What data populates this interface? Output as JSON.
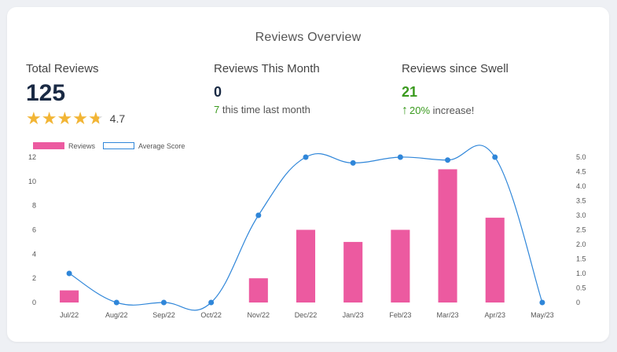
{
  "card": {
    "title": "Reviews Overview"
  },
  "stats": {
    "total": {
      "label": "Total Reviews",
      "value": "125",
      "rating": "4.7",
      "stars": 4.7
    },
    "month": {
      "label": "Reviews This Month",
      "value": "0",
      "sub_num": "7",
      "sub_text": " this time last month"
    },
    "swell": {
      "label": "Reviews since Swell",
      "value": "21",
      "sub_num": "20%",
      "sub_text": " increase!"
    }
  },
  "colors": {
    "bar": "#ec5aa0",
    "line": "#2f86d9",
    "green": "#3a9a1e",
    "star": "#f2b535"
  },
  "icons": {
    "star": "star-icon",
    "arrow": "arrow-up-icon"
  },
  "chart_data": {
    "type": "bar",
    "categories": [
      "Jul/22",
      "Aug/22",
      "Sep/22",
      "Oct/22",
      "Nov/22",
      "Dec/22",
      "Jan/23",
      "Feb/23",
      "Mar/23",
      "Apr/23",
      "May/23"
    ],
    "series": [
      {
        "name": "Reviews",
        "type": "bar",
        "axis": "left",
        "values": [
          1,
          0,
          0,
          0,
          2,
          6,
          5,
          6,
          11,
          7,
          0
        ]
      },
      {
        "name": "Average Score",
        "type": "line",
        "axis": "right",
        "values": [
          1.0,
          0,
          0,
          0,
          3.0,
          5.0,
          4.8,
          5.0,
          4.9,
          5.0,
          0
        ]
      }
    ],
    "y_left": {
      "ticks": [
        "0",
        "2",
        "4",
        "6",
        "8",
        "10",
        "12"
      ],
      "min": 0,
      "max": 12
    },
    "y_right": {
      "ticks": [
        "0",
        "0.5",
        "1.0",
        "1.5",
        "2.0",
        "2.5",
        "3.0",
        "3.5",
        "4.0",
        "4.5",
        "5.0"
      ],
      "min": 0,
      "max": 5
    },
    "legend_position": "top-left",
    "grid": false
  }
}
